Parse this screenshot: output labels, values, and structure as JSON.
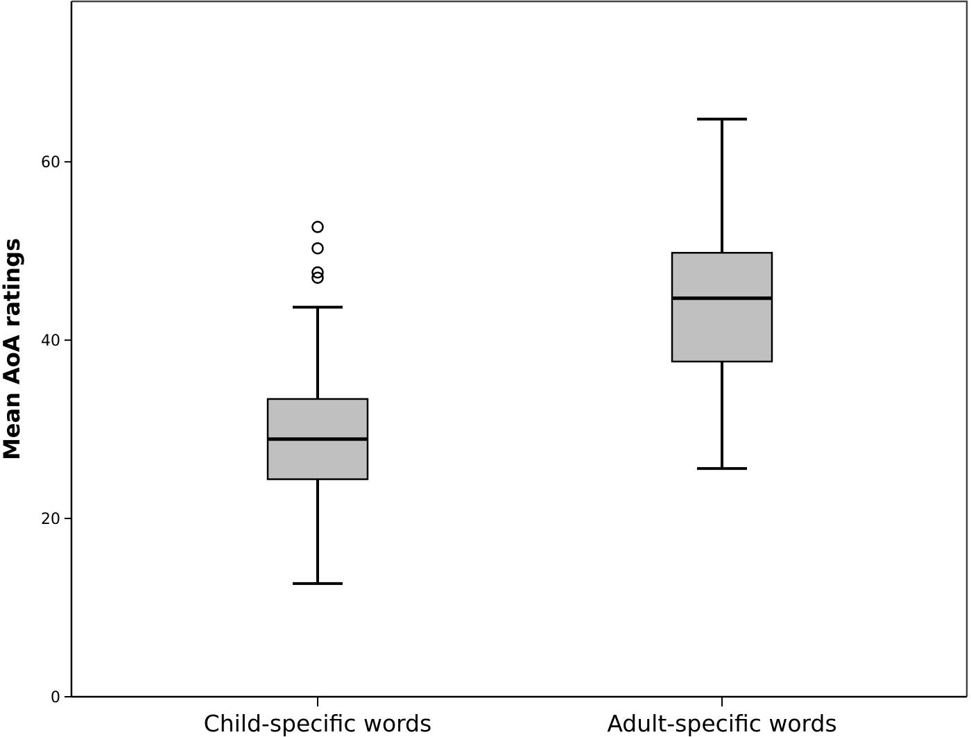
{
  "chart_data": {
    "type": "boxplot",
    "ylabel": "Mean AoA ratings",
    "ylim": [
      0,
      78
    ],
    "yticks": [
      0,
      20,
      40,
      60
    ],
    "grid": false,
    "categories": [
      "Child-specific words",
      "Adult-specific words"
    ],
    "boxes": [
      {
        "category": "Child-specific words",
        "whisker_low": 12.7,
        "q1": 24.4,
        "median": 28.9,
        "q3": 33.4,
        "whisker_high": 43.7,
        "outliers": [
          47.0,
          47.6,
          50.3,
          52.7
        ]
      },
      {
        "category": "Adult-specific words",
        "whisker_low": 25.6,
        "q1": 37.6,
        "median": 44.7,
        "q3": 49.8,
        "whisker_high": 64.8,
        "outliers": []
      }
    ],
    "colors": {
      "box_fill": "#c0c0c0",
      "stroke": "#000000"
    }
  }
}
